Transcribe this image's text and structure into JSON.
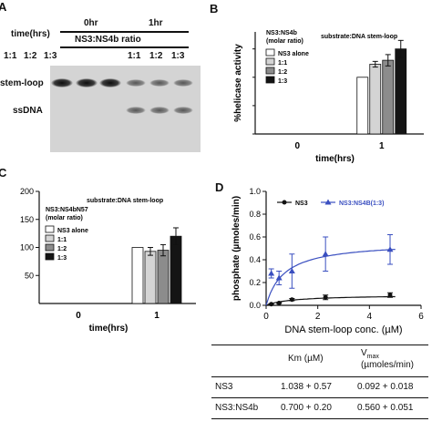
{
  "panels": {
    "A": {
      "letter": "A",
      "time_label": "time(hrs)",
      "time0": "0hr",
      "time1": "1hr",
      "ratio_label": "NS3:NS4b ratio",
      "lanes": [
        "1:1",
        "1:2",
        "1:3",
        "1:1",
        "1:2",
        "1:3"
      ],
      "band_stem": "stem-loop",
      "band_ss": "ssDNA"
    },
    "B": {
      "letter": "B",
      "chart_data": {
        "type": "bar",
        "legend_title_1": "NS3:NS4b",
        "legend_title_2": "(molar ratio)",
        "annotation": "substrate:DNA stem-loop",
        "ylabel": "%helicase activity",
        "xlabel": "time(hrs)",
        "categories": [
          "0",
          "1"
        ],
        "series": [
          {
            "name": "NS3 alone",
            "values": [
              0,
              100
            ],
            "err": [
              0,
              0
            ],
            "color": "#ffffff"
          },
          {
            "name": "1:1",
            "values": [
              0,
              123
            ],
            "err": [
              0,
              5
            ],
            "color": "#d4d4d4"
          },
          {
            "name": "1:2",
            "values": [
              0,
              130
            ],
            "err": [
              0,
              10
            ],
            "color": "#8c8c8c"
          },
          {
            "name": "1:3",
            "values": [
              0,
              150
            ],
            "err": [
              0,
              15
            ],
            "color": "#141414"
          }
        ],
        "ylim": [
          0,
          180
        ]
      }
    },
    "C": {
      "letter": "C",
      "chart_data": {
        "type": "bar",
        "legend_title_1": "NS3:NS4bN57",
        "legend_title_2": "(molar ratio)",
        "annotation": "substrate:DNA stem-loop",
        "ylabel": "",
        "xlabel": "time(hrs)",
        "yticks": [
          "50",
          "100",
          "150",
          "200"
        ],
        "categories": [
          "0",
          "1"
        ],
        "series": [
          {
            "name": "NS3 alone",
            "values": [
              0,
              100
            ],
            "err": [
              0,
              0
            ],
            "color": "#ffffff"
          },
          {
            "name": "1:1",
            "values": [
              0,
              93
            ],
            "err": [
              0,
              7
            ],
            "color": "#d4d4d4"
          },
          {
            "name": "1:2",
            "values": [
              0,
              95
            ],
            "err": [
              0,
              10
            ],
            "color": "#8c8c8c"
          },
          {
            "name": "1:3",
            "values": [
              0,
              120
            ],
            "err": [
              0,
              15
            ],
            "color": "#141414"
          }
        ],
        "ylim": [
          0,
          200
        ]
      }
    },
    "D": {
      "letter": "D",
      "chart_data": {
        "type": "scatter",
        "ylabel": "phosphate (µmoles/min)",
        "xlabel": "DNA stem-loop conc. (µM)",
        "xticks": [
          "0",
          "2",
          "4",
          "6"
        ],
        "yticks": [
          "0.0",
          "0.2",
          "0.4",
          "0.6",
          "0.8",
          "1.0"
        ],
        "xlim": [
          0,
          6
        ],
        "ylim": [
          0,
          1.0
        ],
        "series": [
          {
            "name": "NS3",
            "color": "#111111",
            "marker": "circle",
            "x": [
              0.2,
              0.5,
              1.0,
              2.3,
              4.8
            ],
            "y": [
              0.01,
              0.02,
              0.05,
              0.07,
              0.09
            ],
            "err": [
              0.005,
              0.005,
              0.01,
              0.02,
              0.02
            ],
            "km": 1.038,
            "vmax": 0.092
          },
          {
            "name": "NS3:NS4B(1:3)",
            "color": "#3a4fc0",
            "marker": "triangle",
            "x": [
              0.2,
              0.5,
              1.0,
              2.3,
              4.8
            ],
            "y": [
              0.28,
              0.24,
              0.3,
              0.45,
              0.49
            ],
            "err": [
              0.04,
              0.06,
              0.15,
              0.15,
              0.13
            ],
            "km": 0.7,
            "vmax": 0.56
          }
        ]
      },
      "table": {
        "headers": [
          "",
          "Km (µM)",
          "Vmax (µmoles/min)"
        ],
        "vmax_main": "V",
        "vmax_sub": "max",
        "vmax_units": "(µmoles/min)",
        "rows": [
          {
            "name": "NS3",
            "km": "1.038 + 0.57",
            "vmax": "0.092 + 0.018"
          },
          {
            "name": "NS3:NS4b",
            "km": "0.700 + 0.20",
            "vmax": "0.560 + 0.051"
          }
        ]
      }
    }
  }
}
